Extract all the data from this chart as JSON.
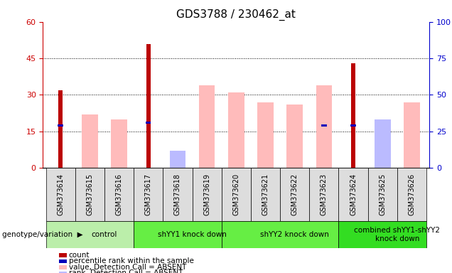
{
  "title": "GDS3788 / 230462_at",
  "samples": [
    "GSM373614",
    "GSM373615",
    "GSM373616",
    "GSM373617",
    "GSM373618",
    "GSM373619",
    "GSM373620",
    "GSM373621",
    "GSM373622",
    "GSM373623",
    "GSM373624",
    "GSM373625",
    "GSM373626"
  ],
  "count": [
    32,
    0,
    0,
    51,
    0,
    0,
    0,
    0,
    0,
    0,
    43,
    0,
    0
  ],
  "percentile_rank": [
    29,
    0,
    0,
    31,
    0,
    0,
    0,
    0,
    0,
    29,
    29,
    0,
    0
  ],
  "value_absent": [
    0,
    22,
    20,
    0,
    5,
    34,
    31,
    27,
    26,
    34,
    0,
    15,
    27
  ],
  "rank_absent": [
    0,
    0,
    0,
    0,
    7,
    0,
    0,
    0,
    0,
    0,
    0,
    20,
    0
  ],
  "groups": [
    {
      "label": "control",
      "start": 0,
      "end": 3
    },
    {
      "label": "shYY1 knock down",
      "start": 3,
      "end": 6
    },
    {
      "label": "shYY2 knock down",
      "start": 6,
      "end": 10
    },
    {
      "label": "combined shYY1-shYY2\nknock down",
      "start": 10,
      "end": 13
    }
  ],
  "group_colors": [
    "#bbeeaa",
    "#66ee44",
    "#66ee44",
    "#33dd22"
  ],
  "ylim_left": [
    0,
    60
  ],
  "ylim_right": [
    0,
    100
  ],
  "yticks_left": [
    0,
    15,
    30,
    45,
    60
  ],
  "yticks_right": [
    0,
    25,
    50,
    75,
    100
  ],
  "color_count": "#bb0000",
  "color_percentile": "#0000bb",
  "color_value_absent": "#ffbbbb",
  "color_rank_absent": "#bbbbff",
  "color_left_axis": "#cc0000",
  "color_right_axis": "#0000cc",
  "wide_bar_width": 0.55,
  "narrow_bar_width": 0.15,
  "small_bar_height": 1.5,
  "legend_items": [
    {
      "label": "count",
      "color": "#bb0000"
    },
    {
      "label": "percentile rank within the sample",
      "color": "#0000bb"
    },
    {
      "label": "value, Detection Call = ABSENT",
      "color": "#ffbbbb"
    },
    {
      "label": "rank, Detection Call = ABSENT",
      "color": "#bbbbff"
    }
  ],
  "bg_color": "#ffffff",
  "cell_bg_color": "#dddddd",
  "genotype_label": "genotype/variation"
}
